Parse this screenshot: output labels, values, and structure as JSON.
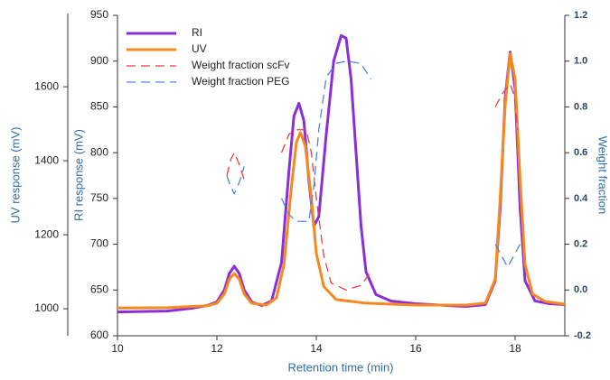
{
  "chart_data": {
    "type": "line",
    "xlabel": "Retention time (min)",
    "ylabel": "RI response (mV)",
    "y2label": "Weight fraction",
    "y3label": "UV response (mV)",
    "xlim": [
      10,
      19
    ],
    "xticks": [
      10,
      12,
      14,
      16,
      18
    ],
    "ylim": [
      600,
      950
    ],
    "yticks": [
      600,
      650,
      700,
      750,
      800,
      850,
      900,
      950
    ],
    "y2lim": [
      -0.2,
      1.2
    ],
    "y2ticks": [
      -0.2,
      {
        "value": 0,
        "label": "0.0"
      },
      0.2,
      0.4,
      0.6,
      0.8,
      {
        "value": 1,
        "label": "1.0"
      },
      1.2
    ],
    "y3lim": [
      927,
      1793
    ],
    "y3ticks": [
      1000,
      1200,
      1400,
      1600
    ],
    "series": [
      {
        "name": "RI",
        "color": "#8a2fd8",
        "axis": "y",
        "x": [
          10,
          11,
          11.5,
          11.8,
          12.0,
          12.15,
          12.25,
          12.35,
          12.45,
          12.55,
          12.7,
          12.9,
          13.1,
          13.3,
          13.45,
          13.55,
          13.65,
          13.75,
          13.85,
          13.95,
          14.05,
          14.2,
          14.35,
          14.5,
          14.6,
          14.7,
          14.8,
          14.9,
          15.0,
          15.2,
          15.5,
          16,
          17,
          17.4,
          17.6,
          17.7,
          17.8,
          17.9,
          18.0,
          18.1,
          18.2,
          18.4,
          18.7,
          19
        ],
        "values": [
          626,
          627,
          630,
          633,
          637,
          650,
          668,
          676,
          668,
          650,
          637,
          633,
          638,
          680,
          780,
          840,
          854,
          835,
          770,
          720,
          730,
          820,
          900,
          928,
          925,
          880,
          800,
          720,
          670,
          645,
          638,
          635,
          632,
          634,
          660,
          740,
          860,
          910,
          870,
          740,
          660,
          638,
          635,
          634
        ]
      },
      {
        "name": "UV",
        "color": "#f5891f",
        "axis": "y3",
        "x": [
          10,
          11,
          11.8,
          12.0,
          12.15,
          12.25,
          12.35,
          12.45,
          12.55,
          12.7,
          13.0,
          13.2,
          13.35,
          13.5,
          13.6,
          13.68,
          13.78,
          13.9,
          14.0,
          14.15,
          14.4,
          15,
          16,
          17,
          17.4,
          17.6,
          17.7,
          17.8,
          17.9,
          18.0,
          18.1,
          18.2,
          18.35,
          18.6,
          19
        ],
        "values": [
          1002,
          1003,
          1008,
          1015,
          1040,
          1080,
          1095,
          1080,
          1040,
          1015,
          1010,
          1030,
          1120,
          1330,
          1450,
          1476,
          1440,
          1300,
          1150,
          1060,
          1025,
          1015,
          1010,
          1010,
          1015,
          1080,
          1300,
          1550,
          1690,
          1620,
          1350,
          1120,
          1040,
          1020,
          1012
        ]
      },
      {
        "name": "Weight fraction scFv",
        "color": "#e8413c",
        "axis": "y2",
        "x": [
          12.2,
          12.28,
          12.35,
          12.45,
          12.55,
          12.9,
          13.3,
          13.45,
          13.6,
          13.8,
          13.9,
          14.0,
          14.15,
          14.3,
          14.6,
          14.9,
          15.1,
          17.0,
          17.6,
          17.75,
          17.9,
          17.98,
          18.05
        ],
        "values": [
          0.5,
          0.57,
          0.6,
          0.55,
          0.48,
          null,
          0.6,
          0.68,
          0.7,
          0.7,
          0.6,
          0.4,
          0.15,
          0.03,
          0.0,
          0.02,
          0.08,
          null,
          0.8,
          0.86,
          0.9,
          0.85,
          0.7
        ]
      },
      {
        "name": "Weight fraction PEG",
        "color": "#4a86e8",
        "axis": "y2",
        "x": [
          12.2,
          12.28,
          12.35,
          12.45,
          12.55,
          12.9,
          13.3,
          13.45,
          13.6,
          13.85,
          13.95,
          14.05,
          14.2,
          14.4,
          14.6,
          14.9,
          15.1,
          17.0,
          17.6,
          17.75,
          17.85,
          17.95,
          18.05,
          18.1
        ],
        "values": [
          0.5,
          0.45,
          0.42,
          0.47,
          0.54,
          null,
          0.4,
          0.33,
          0.3,
          0.3,
          0.45,
          0.7,
          0.93,
          0.99,
          1.0,
          0.99,
          0.92,
          null,
          0.2,
          0.14,
          0.1,
          0.14,
          0.18,
          0.2
        ]
      }
    ]
  }
}
